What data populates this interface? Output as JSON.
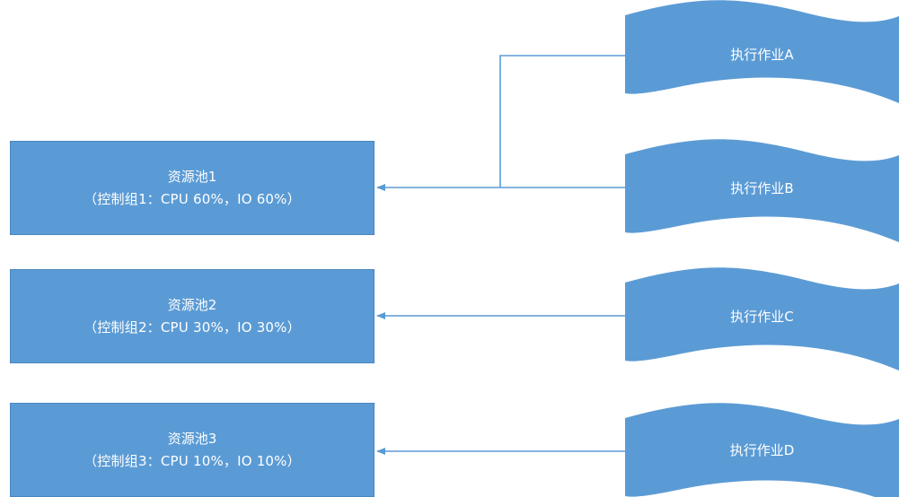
{
  "colors": {
    "fill": "#5b9bd5",
    "line": "#5b9bd5",
    "text": "#ffffff"
  },
  "pools": [
    {
      "title": "资源池1",
      "subtitle": "（控制组1：CPU 60%，IO 60%）"
    },
    {
      "title": "资源池2",
      "subtitle": "（控制组2：CPU 30%，IO 30%）"
    },
    {
      "title": "资源池3",
      "subtitle": "（控制组3：CPU 10%，IO 10%）"
    }
  ],
  "jobs": [
    {
      "label": "执行作业A",
      "target": "资源池1"
    },
    {
      "label": "执行作业B",
      "target": "资源池1"
    },
    {
      "label": "执行作业C",
      "target": "资源池2"
    },
    {
      "label": "执行作业D",
      "target": "资源池3"
    }
  ]
}
